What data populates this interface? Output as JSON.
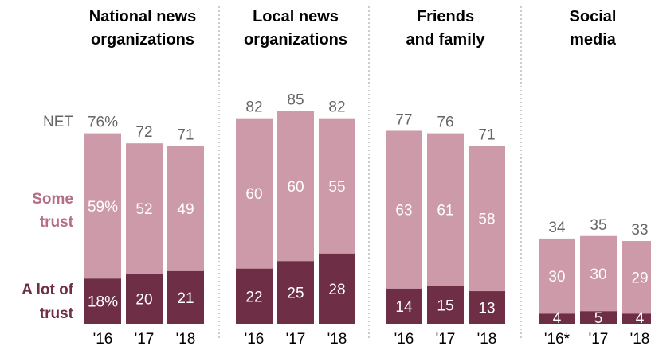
{
  "chart_data": {
    "type": "bar",
    "stacked": true,
    "row_labels": {
      "net": "NET",
      "some": [
        "Some",
        "trust"
      ],
      "alot": [
        "A lot of",
        "trust"
      ]
    },
    "colors": {
      "some_trust": "#cc9aa8",
      "a_lot_of_trust": "#6e2e45",
      "net_text": "#666666",
      "some_label": "#b56e85",
      "alot_label": "#6e2e45",
      "divider": "#999999"
    },
    "ylim": [
      0,
      100
    ],
    "panels": [
      {
        "title": [
          "National news",
          "organizations"
        ],
        "categories": [
          "'16",
          "'17",
          "'18"
        ],
        "net": [
          76,
          72,
          71
        ],
        "net_labels": [
          "76%",
          "72",
          "71"
        ],
        "some_trust": [
          59,
          52,
          49
        ],
        "some_labels": [
          "59%",
          "52",
          "49"
        ],
        "a_lot_of_trust": [
          18,
          20,
          21
        ],
        "alot_labels": [
          "18%",
          "20",
          "21"
        ]
      },
      {
        "title": [
          "Local news",
          "organizations"
        ],
        "categories": [
          "'16",
          "'17",
          "'18"
        ],
        "net": [
          82,
          85,
          82
        ],
        "net_labels": [
          "82",
          "85",
          "82"
        ],
        "some_trust": [
          60,
          60,
          55
        ],
        "some_labels": [
          "60",
          "60",
          "55"
        ],
        "a_lot_of_trust": [
          22,
          25,
          28
        ],
        "alot_labels": [
          "22",
          "25",
          "28"
        ]
      },
      {
        "title": [
          "Friends",
          "and family"
        ],
        "categories": [
          "'16",
          "'17",
          "'18"
        ],
        "net": [
          77,
          76,
          71
        ],
        "net_labels": [
          "77",
          "76",
          "71"
        ],
        "some_trust": [
          63,
          61,
          58
        ],
        "some_labels": [
          "63",
          "61",
          "58"
        ],
        "a_lot_of_trust": [
          14,
          15,
          13
        ],
        "alot_labels": [
          "14",
          "15",
          "13"
        ]
      },
      {
        "title": [
          "Social",
          "media"
        ],
        "categories": [
          "'16*",
          "'17",
          "'18"
        ],
        "net": [
          34,
          35,
          33
        ],
        "net_labels": [
          "34",
          "35",
          "33"
        ],
        "some_trust": [
          30,
          30,
          29
        ],
        "some_labels": [
          "30",
          "30",
          "29"
        ],
        "a_lot_of_trust": [
          4,
          5,
          4
        ],
        "alot_labels": [
          "4",
          "5",
          "4"
        ]
      }
    ]
  }
}
